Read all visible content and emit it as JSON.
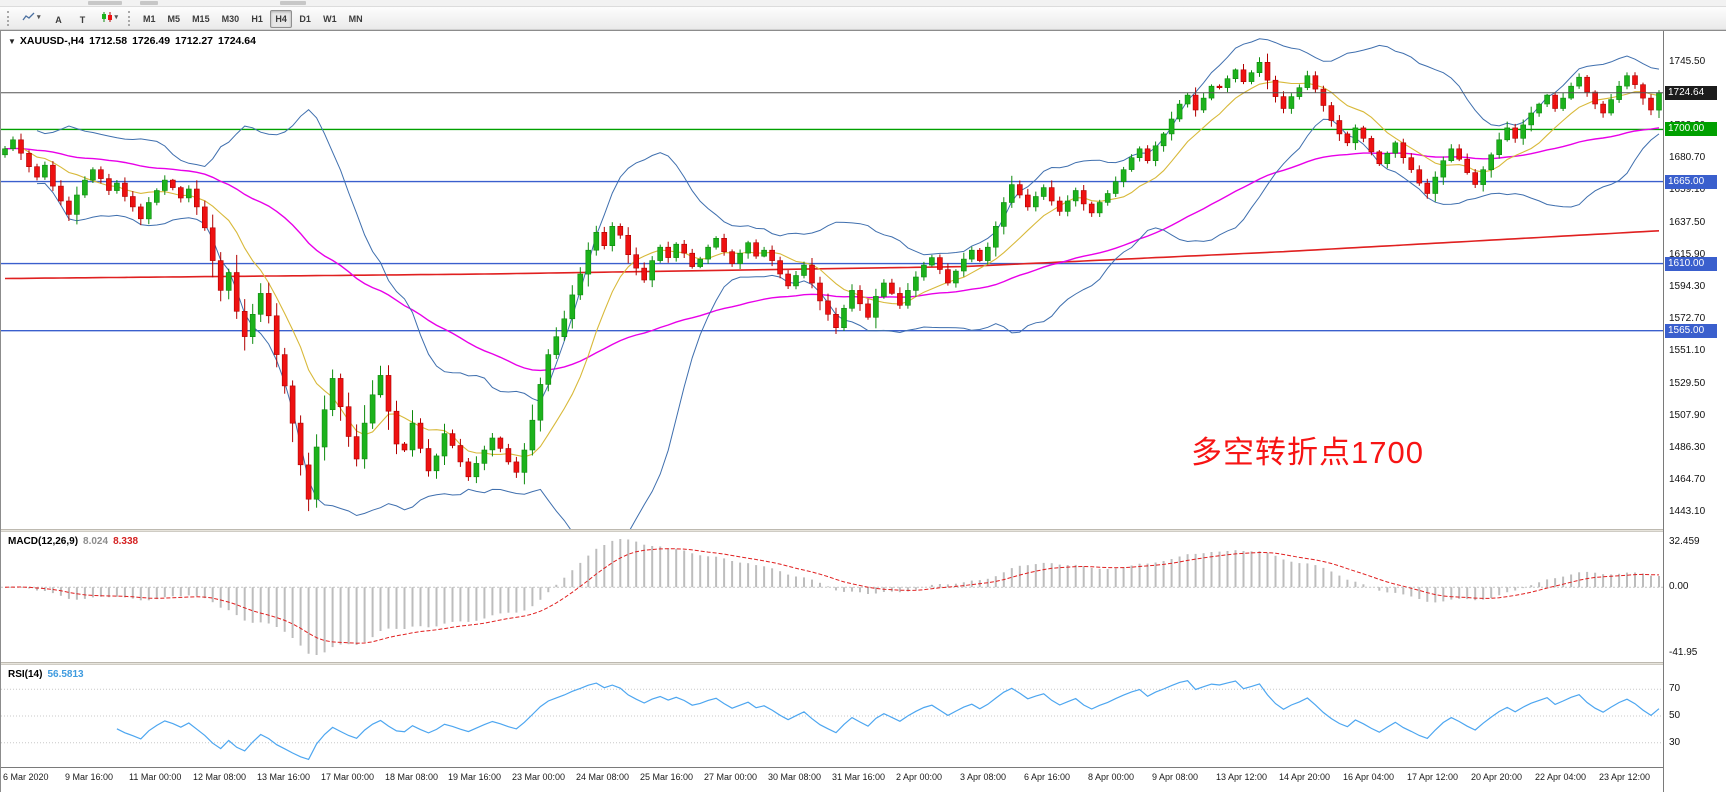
{
  "toolbar": {
    "tools": [
      {
        "name": "chart-menu",
        "glyph": "chart",
        "caret": "▾"
      },
      {
        "name": "text-tool",
        "glyph": "A",
        "caret": ""
      },
      {
        "name": "type-tool",
        "glyph": "T",
        "caret": ""
      },
      {
        "name": "indicators-menu",
        "glyph": "candles",
        "caret": "▾"
      }
    ],
    "timeframes": [
      "M1",
      "M5",
      "M15",
      "M30",
      "H1",
      "H4",
      "D1",
      "W1",
      "MN"
    ],
    "active_timeframe": "H4"
  },
  "chart": {
    "collapse_arrow": "▼",
    "symbol_title": "XAUUSD-,H4",
    "ohlc": {
      "open": "1712.58",
      "high": "1726.49",
      "low": "1712.27",
      "close": "1724.64"
    },
    "current_price": "1724.64",
    "annotation": {
      "text": "多空转折点1700",
      "color": "#f71414"
    },
    "levels": [
      {
        "label": "1700.00",
        "price": 1700.0,
        "color": "#00a000"
      },
      {
        "label": "1665.00",
        "price": 1665.0,
        "color": "#3a5fcd"
      },
      {
        "label": "1610.00",
        "price": 1610.0,
        "color": "#3a5fcd"
      },
      {
        "label": "1565.00",
        "price": 1565.0,
        "color": "#3a5fcd"
      }
    ]
  },
  "indicators": {
    "macd": {
      "label": "MACD(12,26,9)",
      "value_main": "8.024",
      "value_signal": "8.338",
      "scale_top": "32.459",
      "scale_zero": "0.00",
      "scale_bottom": "-41.95"
    },
    "rsi": {
      "label": "RSI(14)",
      "value": "56.5813",
      "levels": [
        "70",
        "50",
        "30"
      ]
    }
  },
  "chart_data": {
    "type": "candlestick",
    "title": "XAUUSD- H4",
    "x_tick_labels": [
      "6 Mar 2020",
      "9 Mar 16:00",
      "11 Mar 00:00",
      "12 Mar 08:00",
      "13 Mar 16:00",
      "17 Mar 00:00",
      "18 Mar 08:00",
      "19 Mar 16:00",
      "23 Mar 00:00",
      "24 Mar 08:00",
      "25 Mar 16:00",
      "27 Mar 00:00",
      "30 Mar 08:00",
      "31 Mar 16:00",
      "2 Apr 00:00",
      "3 Apr 08:00",
      "6 Apr 16:00",
      "8 Apr 00:00",
      "9 Apr 08:00",
      "13 Apr 12:00",
      "14 Apr 20:00",
      "16 Apr 04:00",
      "17 Apr 12:00",
      "20 Apr 20:00",
      "22 Apr 04:00",
      "23 Apr 12:00"
    ],
    "candles_per_tick": 8,
    "closes": [
      1687,
      1693,
      1684,
      1675,
      1668,
      1676,
      1662,
      1652,
      1643,
      1656,
      1666,
      1673,
      1667,
      1659,
      1664,
      1655,
      1648,
      1640,
      1651,
      1659,
      1666,
      1661,
      1654,
      1660,
      1648,
      1634,
      1612,
      1592,
      1604,
      1578,
      1561,
      1576,
      1590,
      1575,
      1549,
      1528,
      1503,
      1475,
      1452,
      1487,
      1512,
      1533,
      1514,
      1494,
      1479,
      1503,
      1522,
      1535,
      1511,
      1489,
      1485,
      1503,
      1486,
      1471,
      1481,
      1496,
      1488,
      1477,
      1467,
      1476,
      1485,
      1493,
      1486,
      1477,
      1470,
      1485,
      1505,
      1529,
      1549,
      1561,
      1573,
      1589,
      1603,
      1619,
      1631,
      1622,
      1635,
      1629,
      1616,
      1607,
      1599,
      1612,
      1621,
      1614,
      1623,
      1617,
      1608,
      1613,
      1621,
      1627,
      1618,
      1610,
      1617,
      1624,
      1615,
      1619,
      1612,
      1603,
      1595,
      1602,
      1609,
      1597,
      1585,
      1576,
      1567,
      1580,
      1592,
      1583,
      1574,
      1588,
      1597,
      1590,
      1582,
      1592,
      1601,
      1609,
      1614,
      1606,
      1597,
      1605,
      1613,
      1619,
      1612,
      1621,
      1635,
      1651,
      1663,
      1656,
      1648,
      1655,
      1661,
      1652,
      1645,
      1652,
      1659,
      1650,
      1644,
      1651,
      1657,
      1665,
      1673,
      1681,
      1687,
      1679,
      1689,
      1697,
      1707,
      1717,
      1723,
      1713,
      1721,
      1729,
      1728,
      1734,
      1740,
      1732,
      1738,
      1745,
      1733,
      1722,
      1714,
      1722,
      1728,
      1736,
      1727,
      1716,
      1706,
      1697,
      1691,
      1701,
      1694,
      1685,
      1677,
      1684,
      1691,
      1681,
      1673,
      1664,
      1657,
      1668,
      1679,
      1687,
      1680,
      1671,
      1663,
      1673,
      1683,
      1693,
      1701,
      1694,
      1703,
      1711,
      1717,
      1723,
      1714,
      1721,
      1729,
      1735,
      1725,
      1717,
      1711,
      1720,
      1729,
      1736,
      1730,
      1721,
      1713,
      1724.64
    ],
    "price_axis": {
      "y_max": 1766,
      "y_min": 1432,
      "tick_labels": [
        "1745.50",
        "1723.90",
        "1702.30",
        "1680.70",
        "1659.10",
        "1637.50",
        "1615.90",
        "1594.30",
        "1572.70",
        "1551.10",
        "1529.50",
        "1507.90",
        "1486.30",
        "1464.70",
        "1443.10"
      ]
    },
    "overlays": {
      "bollinger": {
        "period": 20,
        "deviation": 2,
        "color": "#3f6fae"
      },
      "sma_fast": {
        "period": 10,
        "color": "#d8b93a"
      },
      "ema_slow": {
        "period": 55,
        "color": "#e800e8"
      },
      "ma_long_anchors": {
        "color": "#e02020",
        "points": [
          [
            0,
            1600
          ],
          [
            60,
            1603
          ],
          [
            120,
            1608
          ],
          [
            160,
            1618
          ],
          [
            207,
            1632
          ]
        ]
      }
    },
    "sub_indicators": {
      "macd": {
        "fast": 12,
        "slow": 26,
        "signal": 9,
        "histogram_color": "#bdbdbd",
        "signal_color": "#e02020"
      },
      "rsi": {
        "period": 14,
        "color": "#4da6f0",
        "range": [
          12,
          88
        ]
      }
    }
  },
  "colors": {
    "bull": "#1cb21c",
    "bull_stroke": "#0e8a0e",
    "bear": "#ee1111",
    "bear_stroke": "#b00000",
    "price_line": "#555555",
    "price_badge_bg": "#1c1c1c"
  }
}
